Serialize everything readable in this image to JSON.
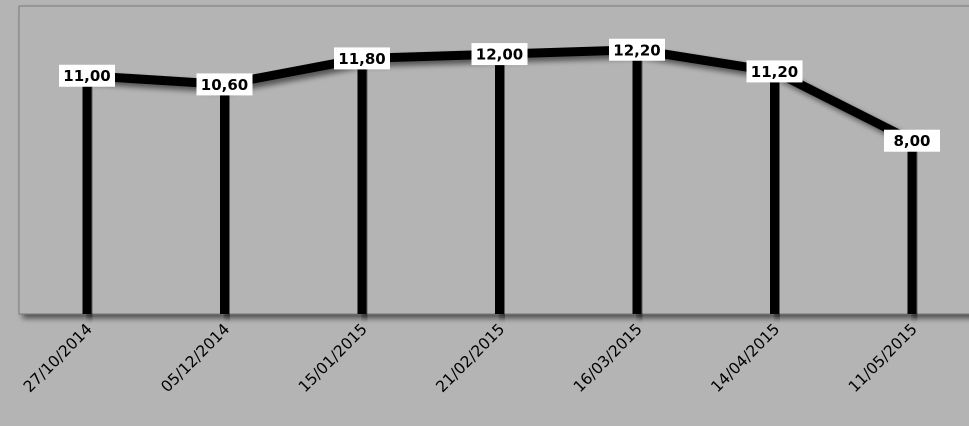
{
  "chart_data": {
    "type": "line",
    "title": "",
    "xlabel": "",
    "ylabel": "",
    "categories": [
      "27/10/2014",
      "05/12/2014",
      "15/01/2015",
      "21/02/2015",
      "16/03/2015",
      "14/04/2015",
      "11/05/2015"
    ],
    "series": [
      {
        "values": [
          11.0,
          10.6,
          11.8,
          12.0,
          12.2,
          11.2,
          8.0
        ],
        "labels": [
          "11,00",
          "10,60",
          "11,80",
          "12,00",
          "12,20",
          "11,20",
          "8,00"
        ]
      }
    ],
    "drop_lines": true,
    "grid": false,
    "legend": "none",
    "ylim": [
      0,
      14.22
    ],
    "colors": {
      "background": "#b4b4b4",
      "plot_area": "#b4b4b4",
      "line": "#000000",
      "label_box": "#ffffff"
    }
  }
}
